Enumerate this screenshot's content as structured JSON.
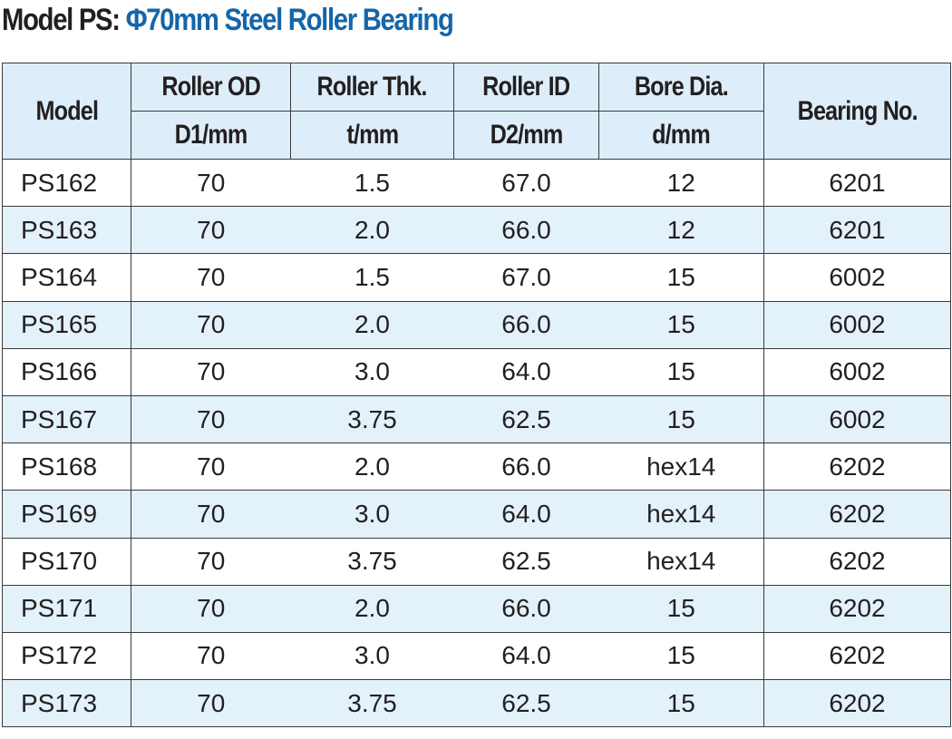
{
  "title": {
    "prefix": "Model PS:",
    "main": "Φ70mm Steel Roller Bearing"
  },
  "columns": [
    {
      "label": "Model",
      "unit": ""
    },
    {
      "label": "Roller OD",
      "unit": "D1/mm"
    },
    {
      "label": "Roller Thk.",
      "unit": "t/mm"
    },
    {
      "label": "Roller ID",
      "unit": "D2/mm"
    },
    {
      "label": "Bore Dia.",
      "unit": "d/mm"
    },
    {
      "label": "Bearing No.",
      "unit": ""
    }
  ],
  "rows": [
    [
      "PS162",
      "70",
      "1.5",
      "67.0",
      "12",
      "6201"
    ],
    [
      "PS163",
      "70",
      "2.0",
      "66.0",
      "12",
      "6201"
    ],
    [
      "PS164",
      "70",
      "1.5",
      "67.0",
      "15",
      "6002"
    ],
    [
      "PS165",
      "70",
      "2.0",
      "66.0",
      "15",
      "6002"
    ],
    [
      "PS166",
      "70",
      "3.0",
      "64.0",
      "15",
      "6002"
    ],
    [
      "PS167",
      "70",
      "3.75",
      "62.5",
      "15",
      "6002"
    ],
    [
      "PS168",
      "70",
      "2.0",
      "66.0",
      "hex14",
      "6202"
    ],
    [
      "PS169",
      "70",
      "3.0",
      "64.0",
      "hex14",
      "6202"
    ],
    [
      "PS170",
      "70",
      "3.75",
      "62.5",
      "hex14",
      "6202"
    ],
    [
      "PS171",
      "70",
      "2.0",
      "66.0",
      "15",
      "6202"
    ],
    [
      "PS172",
      "70",
      "3.0",
      "64.0",
      "15",
      "6202"
    ],
    [
      "PS173",
      "70",
      "3.75",
      "62.5",
      "15",
      "6202"
    ]
  ],
  "colors": {
    "title_accent": "#1565a8",
    "header_bg": "#ddeefa",
    "stripe_bg": "#e3f1fb"
  }
}
